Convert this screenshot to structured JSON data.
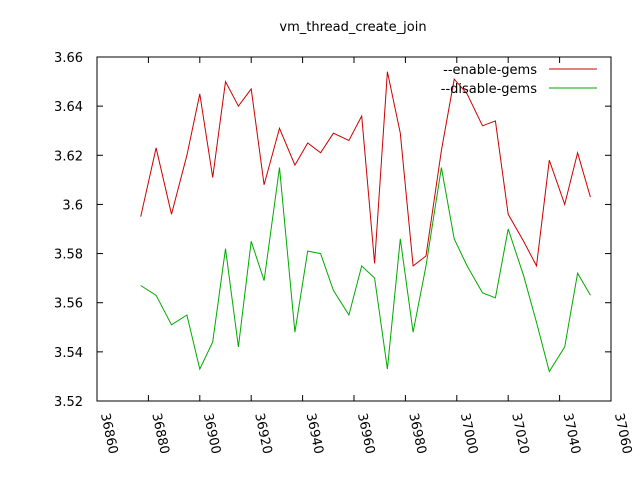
{
  "chart_data": {
    "type": "line",
    "title": "vm_thread_create_join",
    "xlabel": "",
    "ylabel": "",
    "xlim": [
      36860,
      37060
    ],
    "ylim": [
      3.52,
      3.66
    ],
    "x_ticks": [
      "36860",
      "36880",
      "36900",
      "36920",
      "36940",
      "36960",
      "36980",
      "37000",
      "37020",
      "37040",
      "37060"
    ],
    "y_ticks": [
      "3.52",
      "3.54",
      "3.56",
      "3.58",
      "3.6",
      "3.62",
      "3.64",
      "3.66"
    ],
    "grid": false,
    "legend_position": "top-right",
    "series": [
      {
        "name": "--enable-gems",
        "color": "#cc0000",
        "points": [
          [
            36877,
            3.595
          ],
          [
            36883,
            3.623
          ],
          [
            36889,
            3.596
          ],
          [
            36895,
            3.62
          ],
          [
            36900,
            3.645
          ],
          [
            36905,
            3.611
          ],
          [
            36910,
            3.65
          ],
          [
            36915,
            3.64
          ],
          [
            36920,
            3.647
          ],
          [
            36925,
            3.608
          ],
          [
            36931,
            3.631
          ],
          [
            36937,
            3.616
          ],
          [
            36942,
            3.625
          ],
          [
            36947,
            3.621
          ],
          [
            36952,
            3.629
          ],
          [
            36958,
            3.626
          ],
          [
            36963,
            3.636
          ],
          [
            36968,
            3.576
          ],
          [
            36973,
            3.654
          ],
          [
            36978,
            3.629
          ],
          [
            36983,
            3.575
          ],
          [
            36988,
            3.579
          ],
          [
            36994,
            3.622
          ],
          [
            36999,
            3.651
          ],
          [
            37004,
            3.645
          ],
          [
            37010,
            3.632
          ],
          [
            37015,
            3.634
          ],
          [
            37020,
            3.596
          ],
          [
            37026,
            3.585
          ],
          [
            37031,
            3.575
          ],
          [
            37036,
            3.618
          ],
          [
            37042,
            3.6
          ],
          [
            37047,
            3.621
          ],
          [
            37052,
            3.603
          ]
        ]
      },
      {
        "name": "--disable-gems",
        "color": "#00aa00",
        "points": [
          [
            36877,
            3.567
          ],
          [
            36883,
            3.563
          ],
          [
            36889,
            3.551
          ],
          [
            36895,
            3.555
          ],
          [
            36900,
            3.533
          ],
          [
            36905,
            3.544
          ],
          [
            36910,
            3.582
          ],
          [
            36915,
            3.542
          ],
          [
            36920,
            3.585
          ],
          [
            36925,
            3.569
          ],
          [
            36931,
            3.615
          ],
          [
            36937,
            3.548
          ],
          [
            36942,
            3.581
          ],
          [
            36947,
            3.58
          ],
          [
            36952,
            3.565
          ],
          [
            36958,
            3.555
          ],
          [
            36963,
            3.575
          ],
          [
            36968,
            3.57
          ],
          [
            36973,
            3.533
          ],
          [
            36978,
            3.586
          ],
          [
            36983,
            3.548
          ],
          [
            36988,
            3.575
          ],
          [
            36994,
            3.615
          ],
          [
            36999,
            3.586
          ],
          [
            37004,
            3.575
          ],
          [
            37010,
            3.564
          ],
          [
            37015,
            3.562
          ],
          [
            37020,
            3.59
          ],
          [
            37026,
            3.571
          ],
          [
            37031,
            3.552
          ],
          [
            37036,
            3.532
          ],
          [
            37042,
            3.542
          ],
          [
            37047,
            3.572
          ],
          [
            37052,
            3.563
          ]
        ]
      }
    ]
  }
}
